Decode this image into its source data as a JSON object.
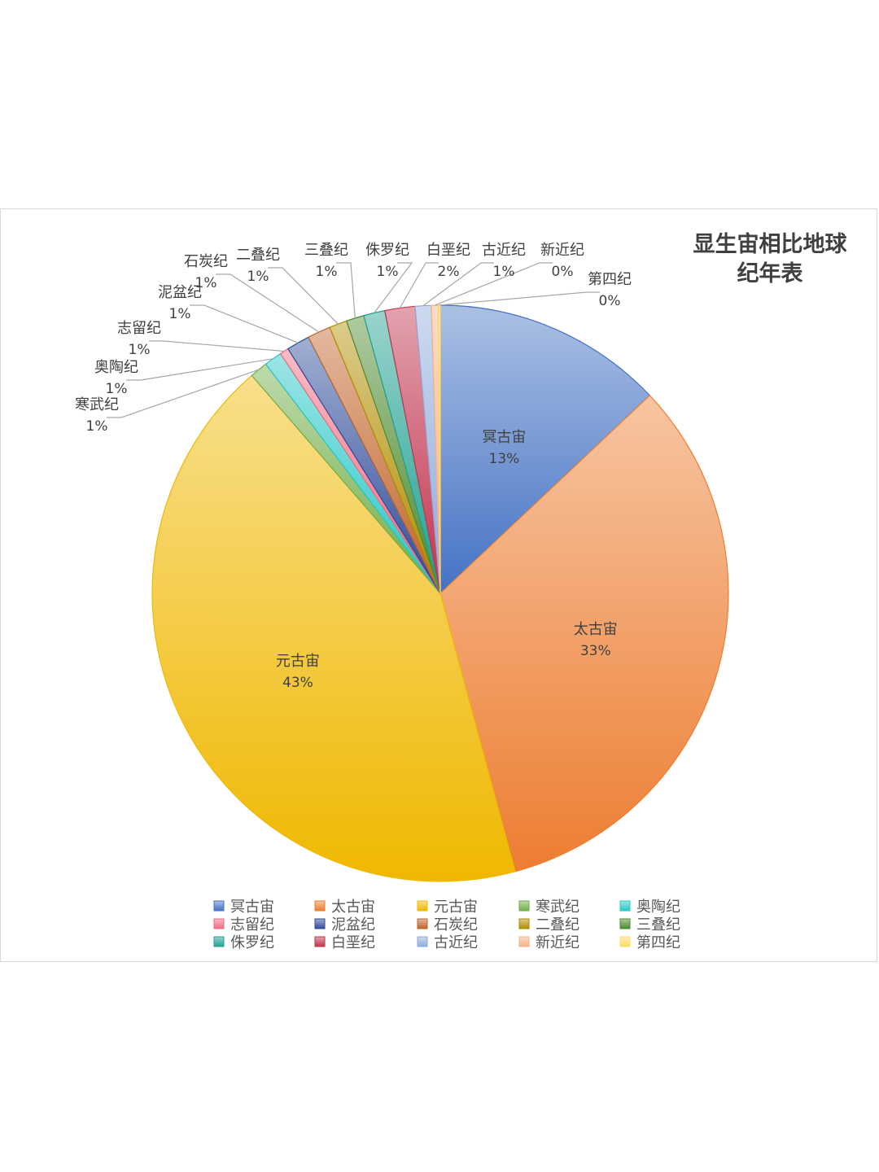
{
  "chart_data": {
    "type": "pie",
    "title_lines": [
      "显生宙相比地球",
      "纪年表"
    ],
    "slices": [
      {
        "name": "冥古宙",
        "value": 13,
        "label": "13%",
        "color": "#4472c4"
      },
      {
        "name": "太古宙",
        "value": 33,
        "label": "33%",
        "color": "#ed7d31"
      },
      {
        "name": "元古宙",
        "value": 43,
        "label": "43%",
        "color": "#f0b800"
      },
      {
        "name": "寒武纪",
        "value": 1,
        "label": "1%",
        "color": "#70ad47"
      },
      {
        "name": "奥陶纪",
        "value": 1,
        "label": "1%",
        "color": "#26c6c6"
      },
      {
        "name": "志留纪",
        "value": 0.5,
        "label": "1%",
        "color": "#f06a80"
      },
      {
        "name": "泥盆纪",
        "value": 1.3,
        "label": "1%",
        "color": "#2f4b99"
      },
      {
        "name": "石炭纪",
        "value": 1.3,
        "label": "1%",
        "color": "#c0632a"
      },
      {
        "name": "二叠纪",
        "value": 1,
        "label": "1%",
        "color": "#b08d00"
      },
      {
        "name": "三叠纪",
        "value": 1,
        "label": "1%",
        "color": "#4e8a2e"
      },
      {
        "name": "侏罗纪",
        "value": 1.2,
        "label": "1%",
        "color": "#1fa090"
      },
      {
        "name": "白垩纪",
        "value": 1.7,
        "label": "2%",
        "color": "#c0334d"
      },
      {
        "name": "古近纪",
        "value": 0.9,
        "label": "1%",
        "color": "#8faadc"
      },
      {
        "name": "新近纪",
        "value": 0.4,
        "label": "0%",
        "color": "#f4b183"
      },
      {
        "name": "第四纪",
        "value": 0.1,
        "label": "0%",
        "color": "#ffd966"
      }
    ],
    "legend_position": "bottom"
  }
}
